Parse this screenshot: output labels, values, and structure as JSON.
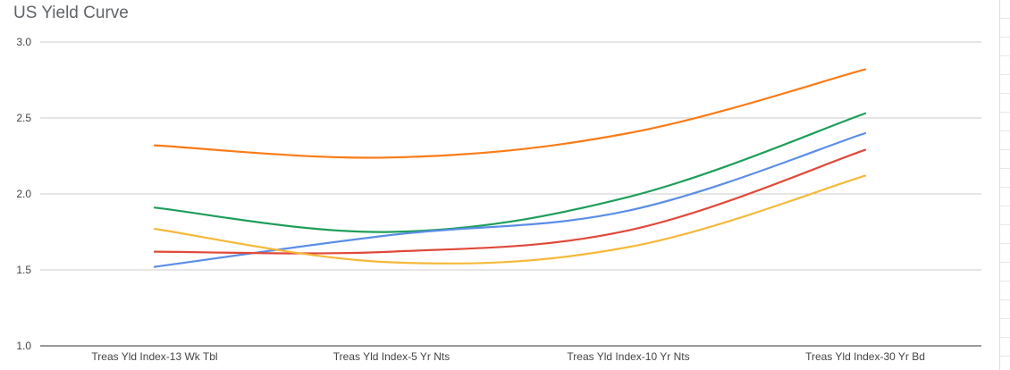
{
  "chart_data": {
    "type": "line",
    "title": "US Yield Curve",
    "xlabel": "",
    "ylabel": "",
    "categories": [
      "Treas Yld Index-13 Wk Tbl",
      "Treas Yld Index-5 Yr Nts",
      "Treas Yld Index-10 Yr Nts",
      "Treas Yld Index-30 Yr Bd"
    ],
    "ylim": [
      1.0,
      3.0
    ],
    "yticks": [
      "3.0",
      "2.5",
      "2.0",
      "1.5",
      "1.0"
    ],
    "grid": true,
    "legend": "none",
    "smooth": true,
    "series": [
      {
        "color": "#fa7b17",
        "values": [
          2.32,
          2.24,
          2.4,
          2.82
        ]
      },
      {
        "color": "#1e9e5a",
        "values": [
          1.91,
          1.75,
          1.98,
          2.53
        ]
      },
      {
        "color": "#5b8ee6",
        "values": [
          1.52,
          1.73,
          1.89,
          2.4
        ]
      },
      {
        "color": "#e0493b",
        "values": [
          1.62,
          1.62,
          1.76,
          2.29
        ]
      },
      {
        "color": "#f4b93a",
        "values": [
          1.77,
          1.55,
          1.65,
          2.12
        ]
      }
    ]
  }
}
